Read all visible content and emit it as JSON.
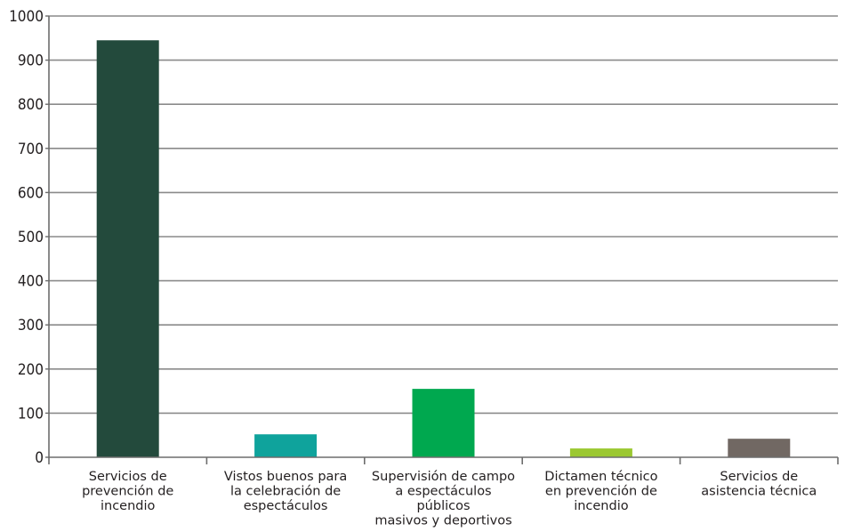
{
  "chart_data": {
    "type": "bar",
    "title": "",
    "xlabel": "",
    "ylabel": "",
    "ylim": [
      0,
      1000
    ],
    "yticks": [
      0,
      100,
      200,
      300,
      400,
      500,
      600,
      700,
      800,
      900,
      1000
    ],
    "grid": true,
    "legend": "none",
    "categories": [
      [
        "Servicios de",
        "prevención de",
        "incendio"
      ],
      [
        "Vistos buenos para",
        "la celebración de",
        "espectáculos"
      ],
      [
        "Supervisión de campo",
        "a espectáculos",
        "públicos",
        "masivos y deportivos"
      ],
      [
        "Dictamen técnico",
        "en prevención de",
        "incendio"
      ],
      [
        "Servicios de",
        "asistencia técnica"
      ]
    ],
    "values": [
      945,
      52,
      155,
      20,
      42
    ],
    "colors": [
      "#234a3c",
      "#0fa39c",
      "#00a84f",
      "#9bc831",
      "#716863"
    ],
    "grid_color": "#8a8a8a",
    "axis_color": "#6d6d6d"
  }
}
